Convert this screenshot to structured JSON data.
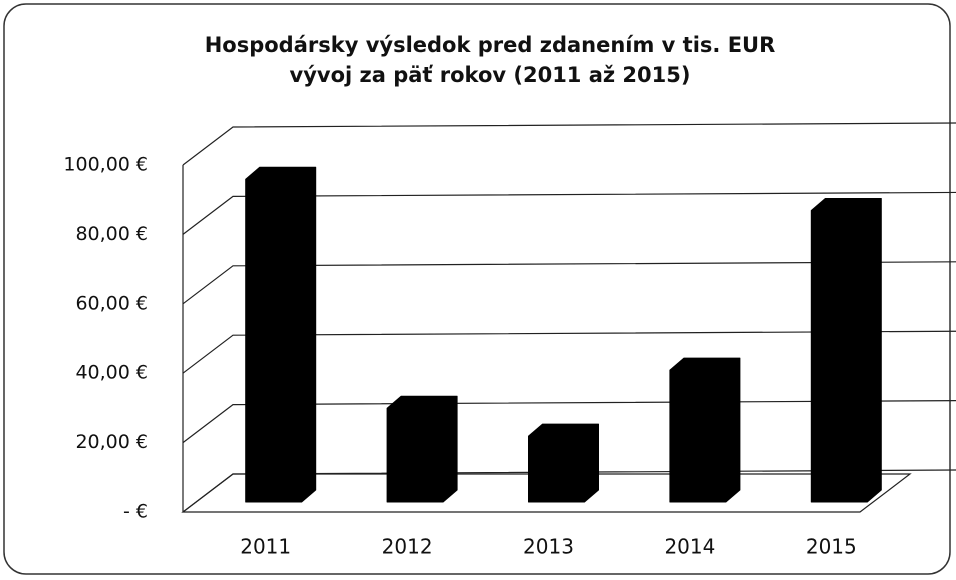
{
  "chart_data": {
    "type": "bar3d",
    "title": "Hospodársky výsledok pred zdanením v tis. EUR",
    "subtitle": "vývoj za päť rokov (2011 až 2015)",
    "categories": [
      "2011",
      "2012",
      "2013",
      "2014",
      "2015"
    ],
    "values": [
      93,
      27,
      19,
      38,
      84
    ],
    "color": "#000000",
    "ylim": [
      0,
      100
    ],
    "yticks": [
      {
        "value": 0,
        "label": "-   €"
      },
      {
        "value": 20,
        "label": "20,00 €"
      },
      {
        "value": 40,
        "label": "40,00 €"
      },
      {
        "value": 60,
        "label": "60,00 €"
      },
      {
        "value": 80,
        "label": "80,00 €"
      },
      {
        "value": 100,
        "label": "100,00 €"
      }
    ],
    "grid": true
  }
}
